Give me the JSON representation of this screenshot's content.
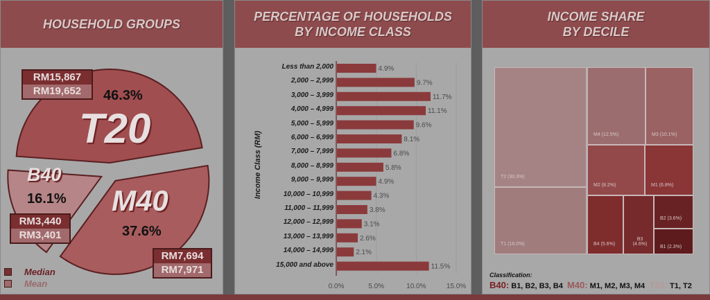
{
  "panels": {
    "household": {
      "title": "HOUSEHOLD GROUPS"
    },
    "income_class": {
      "title_line1": "PERCENTAGE OF HOUSEHOLDS",
      "title_line2": "BY INCOME CLASS"
    },
    "decile": {
      "title_line1": "INCOME SHARE",
      "title_line2": "BY DECILE"
    }
  },
  "colors": {
    "header": "#8e4b4d",
    "bar": "#8b3a3c",
    "median": "#7a2e30",
    "mean": "#a26a6c"
  },
  "chart_data": [
    {
      "type": "pie",
      "title": "HOUSEHOLD GROUPS",
      "slices": [
        {
          "label": "T20",
          "value": 46.3,
          "pct_label": "46.3%",
          "median": "RM15,867",
          "mean": "RM19,652"
        },
        {
          "label": "M40",
          "value": 37.6,
          "pct_label": "37.6%",
          "median": "RM7,694",
          "mean": "RM7,971"
        },
        {
          "label": "B40",
          "value": 16.1,
          "pct_label": "16.1%",
          "median": "RM3,440",
          "mean": "RM3,401"
        }
      ],
      "legend": [
        {
          "label": "Median"
        },
        {
          "label": "Mean"
        }
      ]
    },
    {
      "type": "bar",
      "orientation": "horizontal",
      "title": "PERCENTAGE OF HOUSEHOLDS BY INCOME CLASS",
      "ylabel": "Income Class (RM)",
      "xlabel": "",
      "categories": [
        "Less than 2,000",
        "2,000 – 2,999",
        "3,000 – 3,999",
        "4,000 – 4,999",
        "5,000 – 5,999",
        "6,000 – 6,999",
        "7,000 – 7,999",
        "8,000 – 8,999",
        "9,000 – 9,999",
        "10,000 – 10,999",
        "11,000 – 11,999",
        "12,000 – 12,999",
        "13,000 – 13,999",
        "14,000 – 14,999",
        "15,000 and above"
      ],
      "values": [
        4.9,
        9.7,
        11.7,
        11.1,
        9.6,
        8.1,
        6.8,
        5.8,
        4.9,
        4.3,
        3.8,
        3.1,
        2.6,
        2.1,
        11.5
      ],
      "value_labels": [
        "4.9%",
        "9.7%",
        "11.7%",
        "11.1%",
        "9.6%",
        "8.1%",
        "6.8%",
        "5.8%",
        "4.9%",
        "4.3%",
        "3.8%",
        "3.1%",
        "2.6%",
        "2.1%",
        "11.5%"
      ],
      "xlim": [
        0,
        15
      ],
      "xticks": [
        "0.0%",
        "5.0%",
        "10.0%",
        "15.0%"
      ]
    },
    {
      "type": "treemap",
      "title": "INCOME SHARE BY DECILE",
      "cells": [
        {
          "id": "T2",
          "label": "T2 (30.3%)",
          "value": 30.3
        },
        {
          "id": "T1",
          "label": "T1 (16.0%)",
          "value": 16.0
        },
        {
          "id": "M4",
          "label": "M4 (12.5%)",
          "value": 12.5
        },
        {
          "id": "M3",
          "label": "M3 (10.1%)",
          "value": 10.1
        },
        {
          "id": "M2",
          "label": "M2 (8.2%)",
          "value": 8.2
        },
        {
          "id": "M1",
          "label": "M1 (6.8%)",
          "value": 6.8
        },
        {
          "id": "B4",
          "label": "B4 (5.6%)",
          "value": 5.6
        },
        {
          "id": "B3",
          "label": "B3 (4.6%)",
          "value": 4.6
        },
        {
          "id": "B2",
          "label": "B2 (3.6%)",
          "value": 3.6
        },
        {
          "id": "B1",
          "label": "B1 (2.3%)",
          "value": 2.3
        }
      ],
      "classification": {
        "heading": "Classification:",
        "groups": [
          {
            "name": "B40:",
            "members": "B1, B2, B3, B4"
          },
          {
            "name": "M40:",
            "members": "M1, M2, M3, M4"
          },
          {
            "name": "T20:",
            "members": "T1, T2"
          }
        ]
      }
    }
  ]
}
